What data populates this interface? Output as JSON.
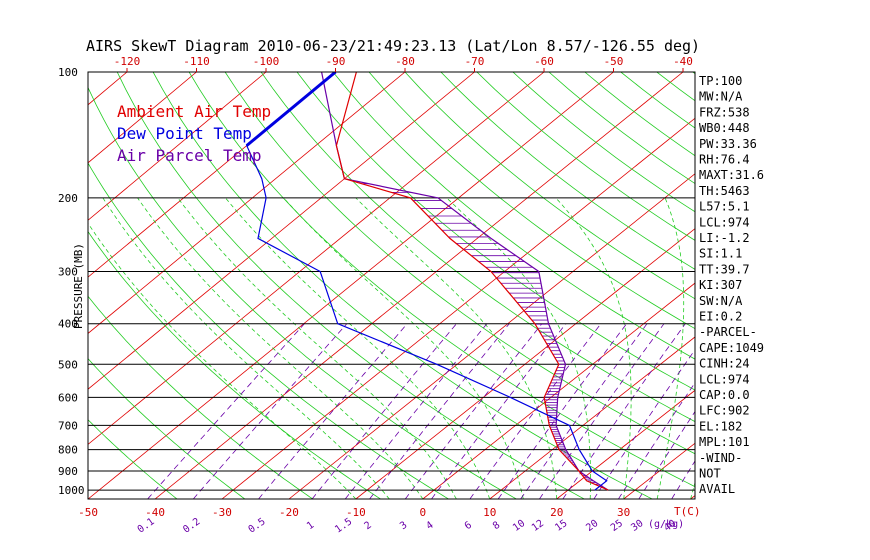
{
  "header": {
    "title": "AIRS SkewT Diagram 2010-06-23/21:49:23.13 (Lat/Lon 8.57/-126.55 deg)"
  },
  "legend": [
    {
      "label": "Ambient Air Temp",
      "color": "#e00000"
    },
    {
      "label": "Dew Point Temp",
      "color": "#0000e0"
    },
    {
      "label": "Air Parcel Temp",
      "color": "#6a00a8"
    }
  ],
  "indices": [
    "TP:100",
    "MW:N/A",
    "FRZ:538",
    "WB0:448",
    "PW:33.36",
    "RH:76.4",
    "MAXT:31.6",
    "TH:5463",
    "L57:5.1",
    "LCL:974",
    "LI:-1.2",
    "SI:1.1",
    "TT:39.7",
    "KI:307",
    "SW:N/A",
    "EI:0.2",
    "-PARCEL-",
    "CAPE:1049",
    "CINH:24",
    "LCL:974",
    "CAP:0.0",
    "LFC:902",
    "EL:182",
    "MPL:101",
    "-WIND-",
    "NOT",
    "AVAIL"
  ],
  "chart_data": {
    "type": "line",
    "title": "AIRS SkewT Diagram 2010-06-23/21:49:23.13 (Lat/Lon 8.57/-126.55 deg)",
    "ylabel": "PRESSURE (MB)",
    "xlabel_bottom": "T(C)",
    "mixing_ratio_unit": "(g/kg)",
    "y_scale": "log",
    "ylim": [
      1050,
      100
    ],
    "pressure_ticks": [
      100,
      200,
      300,
      400,
      500,
      600,
      700,
      800,
      900,
      1000
    ],
    "top_temp_ticks": [
      -120,
      -110,
      -100,
      -90,
      -80,
      -70,
      -60,
      -50,
      -40
    ],
    "bottom_temp_ticks": [
      -50,
      -40,
      -30,
      -20,
      -10,
      0,
      10,
      20,
      30
    ],
    "mixing_ratio_labels": [
      "0.1",
      "0.2",
      "0.5",
      "1",
      "1.5",
      "2",
      "3",
      "4",
      "6",
      "8",
      "10",
      "12",
      "15",
      "20",
      "25",
      "30",
      "40"
    ],
    "series": [
      {
        "name": "Ambient Air Temp",
        "color": "#e00000",
        "pressure": [
          100,
          150,
          180,
          200,
          250,
          300,
          400,
          500,
          600,
          700,
          800,
          900,
          950,
          1000
        ],
        "temperature": [
          -87,
          -77,
          -70,
          -57,
          -44,
          -32,
          -16,
          -5,
          -1,
          5,
          11,
          18,
          21,
          26
        ]
      },
      {
        "name": "Dew Point Temp",
        "color": "#0000e0",
        "pressure": [
          100,
          125,
          150,
          180,
          200,
          250,
          300,
          400,
          500,
          600,
          700,
          800,
          900,
          950,
          1000
        ],
        "dewpoint": [
          -90,
          -90,
          -90,
          -82,
          -78,
          -72,
          -57,
          -45,
          -23,
          -6,
          8,
          14,
          20,
          24,
          24
        ]
      },
      {
        "name": "Air Parcel Temp",
        "color": "#6a00a8",
        "pressure": [
          100,
          150,
          180,
          200,
          250,
          300,
          400,
          500,
          600,
          700,
          800,
          900,
          950,
          1000
        ],
        "temperature": [
          -92,
          -77,
          -70,
          -53,
          -38,
          -25,
          -14,
          -4,
          1,
          6,
          12,
          18,
          22,
          26
        ]
      }
    ]
  }
}
